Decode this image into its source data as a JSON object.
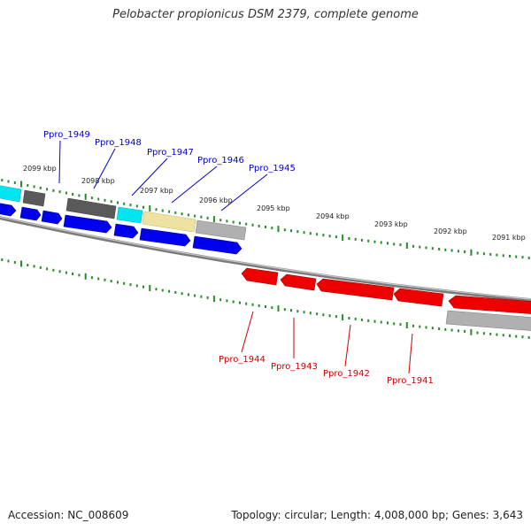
{
  "title": "Pelobacter propionicus DSM 2379, complete genome",
  "footer": {
    "accession": "Accession: NC_008609",
    "summary": "Topology: circular; Length: 4,008,000 bp; Genes: 3,643"
  },
  "colors": {
    "forward_label": "#0000cc",
    "reverse_label": "#cc0000",
    "tick": "#2a8a2a",
    "backbone": "#7a7a7a",
    "cyan": "#00e5f0",
    "dark_gray": "#5a5a5a",
    "light_gray": "#b0b0b0",
    "khaki": "#eee2a0",
    "blue": "#0000ee",
    "red": "#ee0000"
  },
  "kbp_ticks": [
    "2099 kbp",
    "2098 kbp",
    "2097 kbp",
    "2096 kbp",
    "2095 kbp",
    "2094 kbp",
    "2093 kbp",
    "2092 kbp",
    "2091 kbp"
  ],
  "forward_genes": [
    "Ppro_1949",
    "Ppro_1948",
    "Ppro_1947",
    "Ppro_1946",
    "Ppro_1945"
  ],
  "reverse_genes": [
    "Ppro_1944",
    "Ppro_1943",
    "Ppro_1942",
    "Ppro_1941"
  ]
}
